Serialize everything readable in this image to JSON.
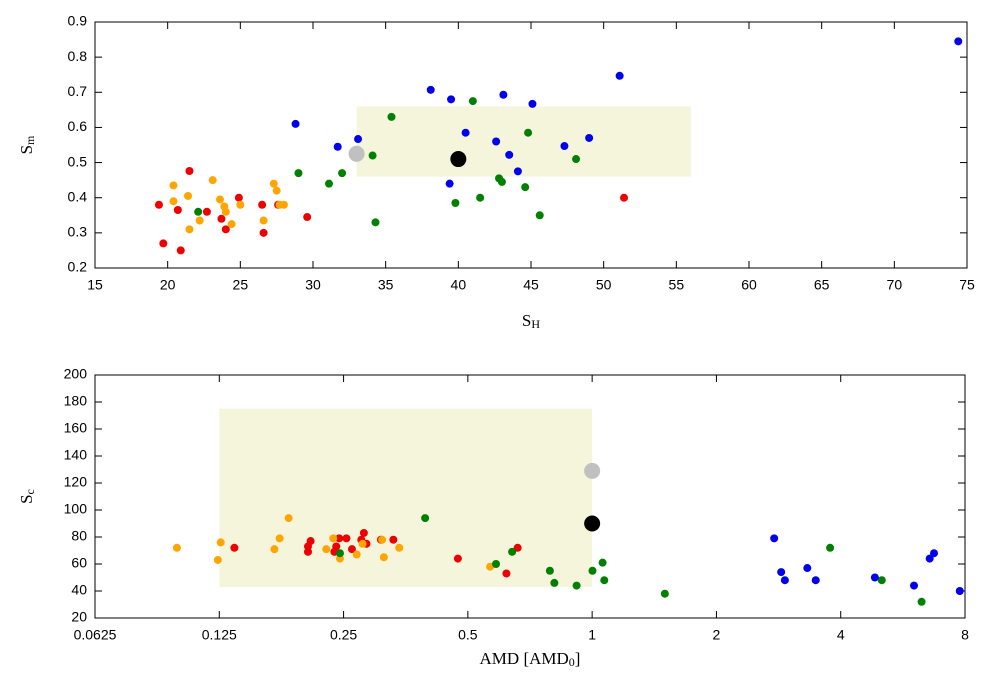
{
  "chart_data": [
    {
      "type": "scatter",
      "xlabel": [
        "S",
        "H"
      ],
      "ylabel": [
        "S",
        "m"
      ],
      "xlim": [
        15,
        75
      ],
      "xticks": [
        15,
        20,
        25,
        30,
        35,
        40,
        45,
        50,
        55,
        60,
        65,
        70,
        75
      ],
      "ylim": [
        0.2,
        0.9
      ],
      "yticks": [
        0.2,
        0.3,
        0.4,
        0.5,
        0.6,
        0.7,
        0.8,
        0.9
      ],
      "regions": [
        {
          "x": [
            33,
            56
          ],
          "y": [
            0.46,
            0.66
          ],
          "color": "#f5f5dc"
        }
      ],
      "series": [
        {
          "color": "#ee0000",
          "marker": "small",
          "x": [
            19.4,
            19.7,
            20.7,
            20.9,
            21.5,
            22.7,
            23.7,
            24.0,
            24.9,
            26.5,
            26.6,
            27.6,
            29.6,
            51.4
          ],
          "values": [
            0.38,
            0.27,
            0.365,
            0.25,
            0.476,
            0.36,
            0.34,
            0.31,
            0.4,
            0.38,
            0.3,
            0.38,
            0.345,
            0.4
          ]
        },
        {
          "color": "#ffa500",
          "marker": "small",
          "x": [
            20.4,
            20.4,
            21.4,
            21.5,
            22.2,
            23.1,
            23.6,
            23.9,
            24.0,
            24.4,
            25.0,
            26.6,
            27.3,
            27.5,
            27.7,
            28.0
          ],
          "values": [
            0.435,
            0.39,
            0.405,
            0.31,
            0.335,
            0.45,
            0.395,
            0.375,
            0.36,
            0.325,
            0.38,
            0.335,
            0.44,
            0.42,
            0.38,
            0.38
          ]
        },
        {
          "color": "#008000",
          "marker": "small",
          "x": [
            22.1,
            29.0,
            31.1,
            32.0,
            34.1,
            34.3,
            35.4,
            39.8,
            41.0,
            41.5,
            42.8,
            43.0,
            44.6,
            44.8,
            45.6,
            48.1
          ],
          "values": [
            0.36,
            0.47,
            0.44,
            0.47,
            0.52,
            0.33,
            0.63,
            0.385,
            0.675,
            0.4,
            0.455,
            0.445,
            0.43,
            0.585,
            0.35,
            0.51
          ]
        },
        {
          "color": "#0000ee",
          "marker": "small",
          "x": [
            28.8,
            31.7,
            33.1,
            38.1,
            39.5,
            39.4,
            40.5,
            42.6,
            43.1,
            43.5,
            44.1,
            45.1,
            47.3,
            49.0,
            51.1,
            74.4
          ],
          "values": [
            0.61,
            0.545,
            0.567,
            0.707,
            0.68,
            0.44,
            0.585,
            0.56,
            0.693,
            0.522,
            0.475,
            0.667,
            0.547,
            0.57,
            0.747,
            0.845
          ]
        },
        {
          "color": "#c0c0c0",
          "marker": "large",
          "x": [
            33.0
          ],
          "values": [
            0.525
          ]
        },
        {
          "color": "#000000",
          "marker": "large",
          "x": [
            40.0
          ],
          "values": [
            0.51
          ]
        }
      ]
    },
    {
      "type": "scatter",
      "xlabel": [
        "AMD [AMD",
        "0",
        "]"
      ],
      "ylabel": [
        "S",
        "c"
      ],
      "xlog": true,
      "xlim": [
        0.0625,
        8
      ],
      "xticks": [
        0.0625,
        0.125,
        0.25,
        0.5,
        1,
        2,
        4,
        8
      ],
      "ylim": [
        20,
        200
      ],
      "yticks": [
        20,
        40,
        60,
        80,
        100,
        120,
        140,
        160,
        180,
        200
      ],
      "regions": [
        {
          "x": [
            0.125,
            1
          ],
          "y": [
            43,
            175
          ]
        }
      ],
      "series": [
        {
          "color": "#ee0000",
          "marker": "small",
          "x": [
            0.136,
            0.205,
            0.205,
            0.208,
            0.2375,
            0.24,
            0.244,
            0.254,
            0.262,
            0.276,
            0.28,
            0.284,
            0.308,
            0.33,
            0.473,
            0.62,
            0.66
          ],
          "values": [
            72,
            73,
            69,
            77,
            69,
            73,
            79,
            79,
            71,
            78,
            83,
            75,
            78,
            78,
            64,
            53,
            72
          ]
        },
        {
          "color": "#ffa500",
          "marker": "small",
          "x": [
            0.0987,
            0.126,
            0.124,
            0.17,
            0.175,
            0.184,
            0.227,
            0.236,
            0.245,
            0.269,
            0.278,
            0.31,
            0.313,
            0.341,
            0.566
          ],
          "values": [
            72,
            76,
            63,
            71,
            79,
            94,
            71,
            79,
            64,
            67,
            75,
            78,
            65,
            72,
            58
          ]
        },
        {
          "color": "#008000",
          "marker": "small",
          "x": [
            0.245,
            0.394,
            0.585,
            0.64,
            0.79,
            0.81,
            0.917,
            1.002,
            1.06,
            1.07,
            1.5,
            3.77,
            5.03,
            6.28
          ],
          "values": [
            68,
            94,
            60,
            69,
            55,
            46,
            44,
            55,
            61,
            48,
            38,
            72,
            48,
            32
          ]
        },
        {
          "color": "#0000ee",
          "marker": "small",
          "x": [
            2.76,
            2.87,
            2.93,
            3.32,
            3.48,
            4.84,
            6.02,
            6.57,
            6.73,
            7.77
          ],
          "values": [
            79,
            54,
            48,
            57,
            48,
            50,
            44,
            64,
            68,
            40
          ]
        },
        {
          "color": "#c0c0c0",
          "marker": "large",
          "x": [
            1
          ],
          "values": [
            129
          ]
        },
        {
          "color": "#000000",
          "marker": "large",
          "x": [
            1
          ],
          "values": [
            90
          ]
        }
      ]
    }
  ]
}
